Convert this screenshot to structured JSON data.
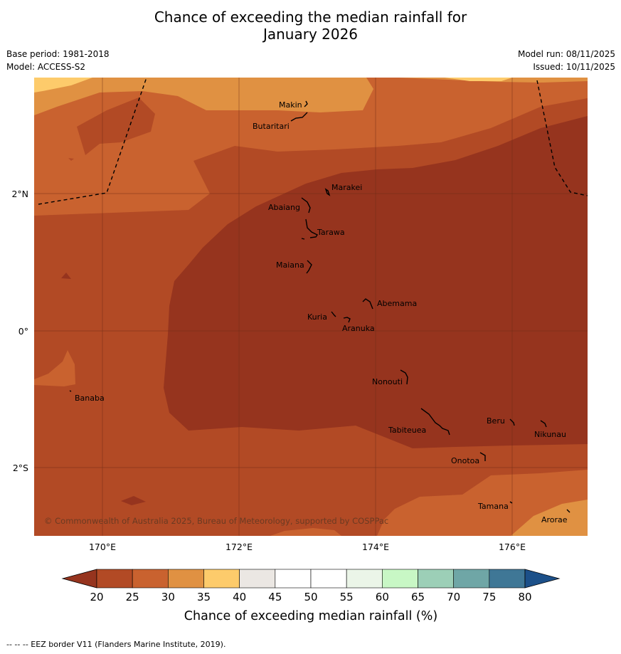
{
  "title_line1": "Chance of exceeding the median rainfall for",
  "title_line2": "January 2026",
  "base_period": "Base period: 1981-2018",
  "model": "Model: ACCESS-S2",
  "model_run": "Model run: 08/11/2025",
  "issued": "Issued: 10/11/2025",
  "copyright": "© Commonwealth of Australia 2025, Bureau of Meteorology, supported by COSPPac",
  "footnote": "--  --  -- EEZ border V11 (Flanders Marine Institute, 2019).",
  "axes": {
    "x_ticks": [
      "170°E",
      "172°E",
      "174°E",
      "176°E"
    ],
    "y_ticks": [
      "2°N",
      "0°",
      "2°S"
    ]
  },
  "colorbar": {
    "label": "Chance of exceeding median rainfall (%)",
    "ticks": [
      "20",
      "25",
      "30",
      "35",
      "40",
      "45",
      "50",
      "55",
      "60",
      "65",
      "70",
      "75",
      "80"
    ],
    "colors": [
      "#b24a25",
      "#c9622f",
      "#e09142",
      "#fdcb6b",
      "#ebe7e3",
      "#ffffff",
      "#ffffff",
      "#ebf5e8",
      "#c8f7c5",
      "#9ccfb7",
      "#6fa6a6",
      "#3f7796"
    ],
    "under_color": "#96341e",
    "over_color": "#1c5089"
  },
  "places": [
    {
      "name": "Makin"
    },
    {
      "name": "Butaritari"
    },
    {
      "name": "Marakei"
    },
    {
      "name": "Abaiang"
    },
    {
      "name": "Tarawa"
    },
    {
      "name": "Maiana"
    },
    {
      "name": "Abemama"
    },
    {
      "name": "Kuria"
    },
    {
      "name": "Aranuka"
    },
    {
      "name": "Banaba"
    },
    {
      "name": "Nonouti"
    },
    {
      "name": "Beru"
    },
    {
      "name": "Nikunau"
    },
    {
      "name": "Tabiteuea"
    },
    {
      "name": "Onotoa"
    },
    {
      "name": "Tamana"
    },
    {
      "name": "Arorae"
    }
  ]
}
